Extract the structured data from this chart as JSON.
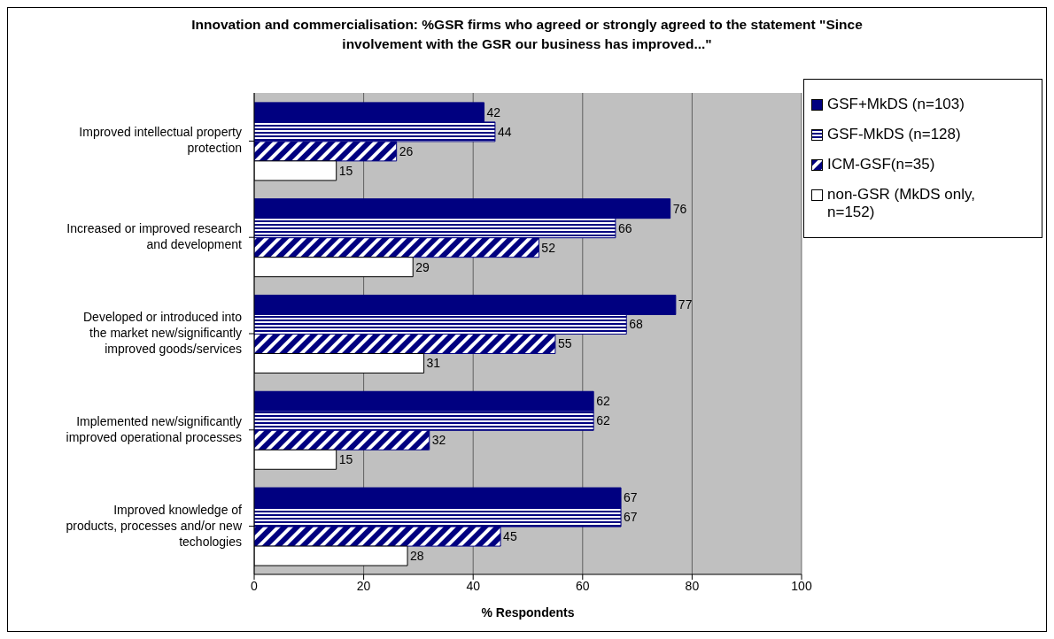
{
  "chart_data": {
    "type": "bar",
    "orientation": "horizontal",
    "title": "Innovation and commercialisation: %GSR firms who agreed or strongly agreed to the statement \"Since involvement with the GSR our business has improved...\"",
    "xlabel": "% Respondents",
    "categories": [
      "Improved intellectual property protection",
      "Increased or improved research and development",
      "Developed or introduced into the market new/significantly improved goods/services",
      "Implemented new/significantly improved operational processes",
      "Improved knowledge of products, processes and/or new techologies"
    ],
    "series": [
      {
        "name": "GSF+MkDS (n=103)",
        "color": "#000080",
        "values": [
          42,
          76,
          77,
          62,
          67
        ]
      },
      {
        "name": "GSF-MkDS (n=128)",
        "color": "#000080",
        "values": [
          44,
          66,
          68,
          62,
          67
        ]
      },
      {
        "name": "ICM-GSF(n=35)",
        "color": "#000080",
        "values": [
          26,
          52,
          55,
          32,
          45
        ]
      },
      {
        "name": "non-GSR (MkDS only, n=152)",
        "color": "#ffffff",
        "values": [
          15,
          29,
          31,
          15,
          28
        ]
      }
    ],
    "xlim": [
      0,
      100
    ],
    "xticks": [
      0,
      20,
      40,
      60,
      80,
      100
    ],
    "grid": "x",
    "legend": "right",
    "data_labels": true
  }
}
